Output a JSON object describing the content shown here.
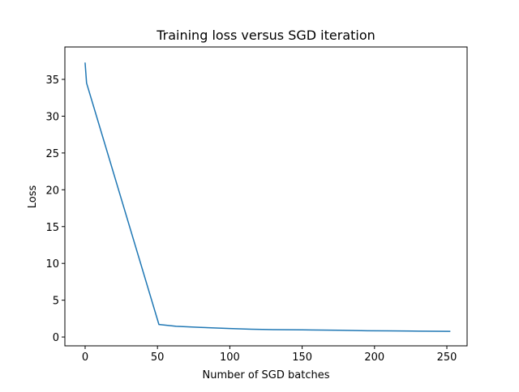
{
  "chart_data": {
    "type": "line",
    "title": "Training loss versus SGD iteration",
    "xlabel": "Number of SGD batches",
    "ylabel": "Loss",
    "xlim": [
      -14,
      264
    ],
    "ylim": [
      -1.2,
      39.4
    ],
    "xticks": [
      0,
      50,
      100,
      150,
      200,
      250
    ],
    "yticks": [
      0,
      5,
      10,
      15,
      20,
      25,
      30,
      35
    ],
    "grid": false,
    "legend": "none",
    "series": [
      {
        "color": "#1f77b4",
        "x": [
          0,
          1,
          51,
          63,
          80,
          100,
          115,
          130,
          150,
          175,
          195,
          210,
          230,
          252
        ],
        "y": [
          37.2,
          34.5,
          1.7,
          1.45,
          1.3,
          1.15,
          1.05,
          1.0,
          0.97,
          0.92,
          0.85,
          0.83,
          0.8,
          0.77
        ]
      }
    ]
  }
}
